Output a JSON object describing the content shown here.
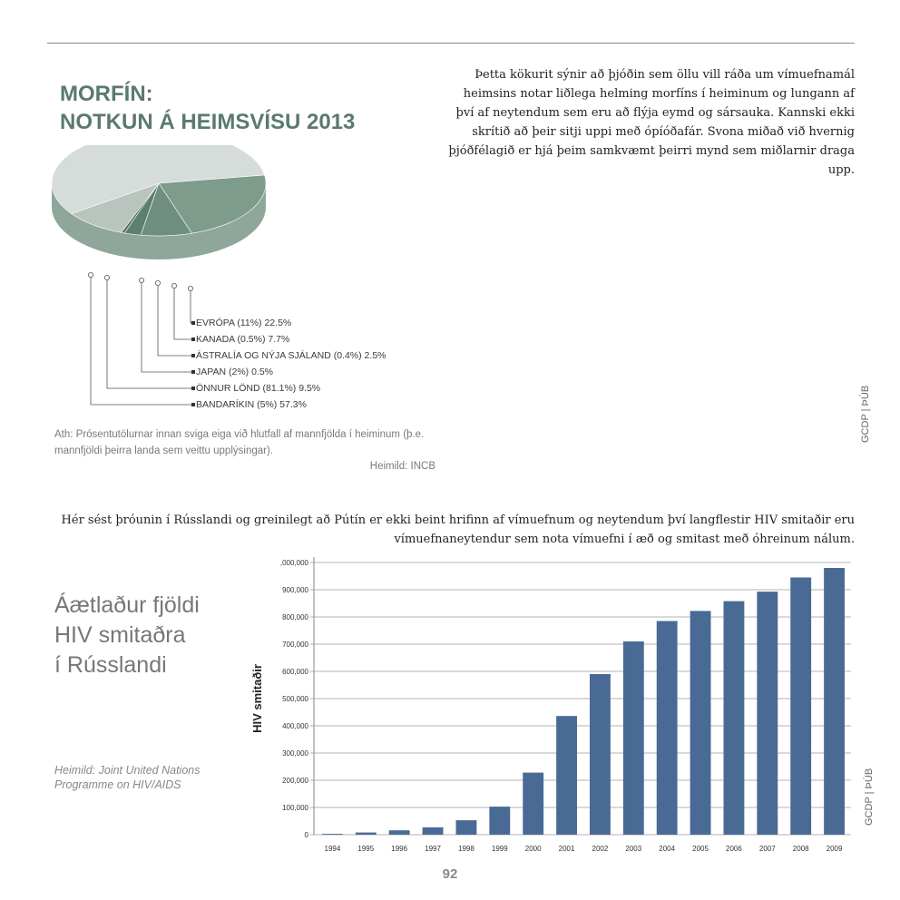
{
  "intro_text": "Þetta kökurit sýnir að þjóðin sem öllu vill ráða um vímuefnamál heimsins notar liðlega helming morfíns í heiminum og lungann af því af neytendum sem eru að flýja eymd og sársauka. Kannski ekki skrítið að þeir sitji uppi með ópíóðafár. Svona miðað við hvernig þjóðfélagið er hjá þeim samkvæmt þeirri mynd sem miðlarnir draga upp.",
  "credit": "GCDP | ÞÚB",
  "middle_text": "Hér sést þróunin í Rússlandi og greinilegt að Pútín er ekki beint hrifinn af vímuefnum og neytendum því langflestir HIV smitaðir eru vímuefnaneytendur sem nota vímuefni í æð og smitast með óhreinum nálum.",
  "page_number": "92",
  "chart_data": [
    {
      "type": "pie",
      "title_line1": "MORFÍN:",
      "title_line2": "NOTKUN Á HEIMSVÍSU 2013",
      "slices": [
        {
          "name": "EVRÓPA (11%) 22.5%",
          "value": 22.5,
          "color": "#7d9c8c"
        },
        {
          "name": "KANADA (0.5%) 7.7%",
          "value": 7.7,
          "color": "#6e8f80"
        },
        {
          "name": "ÁSTRALÍA OG NÝJA SJÁLAND (0.4%) 2.5%",
          "value": 2.5,
          "color": "#5d7f70"
        },
        {
          "name": "JAPAN (2%) 0.5%",
          "value": 0.5,
          "color": "#4f7061"
        },
        {
          "name": "ÖNNUR LÖND (81.1%) 9.5%",
          "value": 9.5,
          "color": "#b9c4bf"
        },
        {
          "name": "BANDARÍKIN (5%) 57.3%",
          "value": 57.3,
          "color": "#d6dcd9"
        }
      ],
      "note": "Ath: Prósentutölurnar innan sviga eiga við hlutfall af mannfjölda í heiminum (þ.e. mannfjöldi þeirra landa sem veittu upplýsingar).",
      "source": "Heimild: INCB"
    },
    {
      "type": "bar",
      "title_line1": "Áætlaður fjöldi",
      "title_line2": "HIV smitaðra",
      "title_line3": "í Rússlandi",
      "ylabel": "HIV smitaðir",
      "ylim": [
        0,
        1000000
      ],
      "yticks": [
        0,
        100000,
        200000,
        300000,
        400000,
        500000,
        600000,
        700000,
        800000,
        900000,
        1000000
      ],
      "ytick_labels": [
        "0",
        "100,000",
        "200,000",
        "300,000",
        "400,000",
        "500,000",
        "600,000",
        "700,000",
        "800,000",
        "900,000",
        ",000,000"
      ],
      "categories": [
        "1994",
        "1995",
        "1996",
        "1997",
        "1998",
        "1999",
        "2000",
        "2001",
        "2002",
        "2003",
        "2004",
        "2005",
        "2006",
        "2007",
        "2008",
        "2009"
      ],
      "values": [
        3000,
        8000,
        16000,
        27000,
        53000,
        103000,
        228000,
        436000,
        590000,
        710000,
        785000,
        822000,
        858000,
        893000,
        945000,
        980000
      ],
      "bar_color": "#4a6a96",
      "grid": true,
      "source_line1": "Heimild: Joint United Nations",
      "source_line2": "Programme on HIV/AIDS"
    }
  ]
}
